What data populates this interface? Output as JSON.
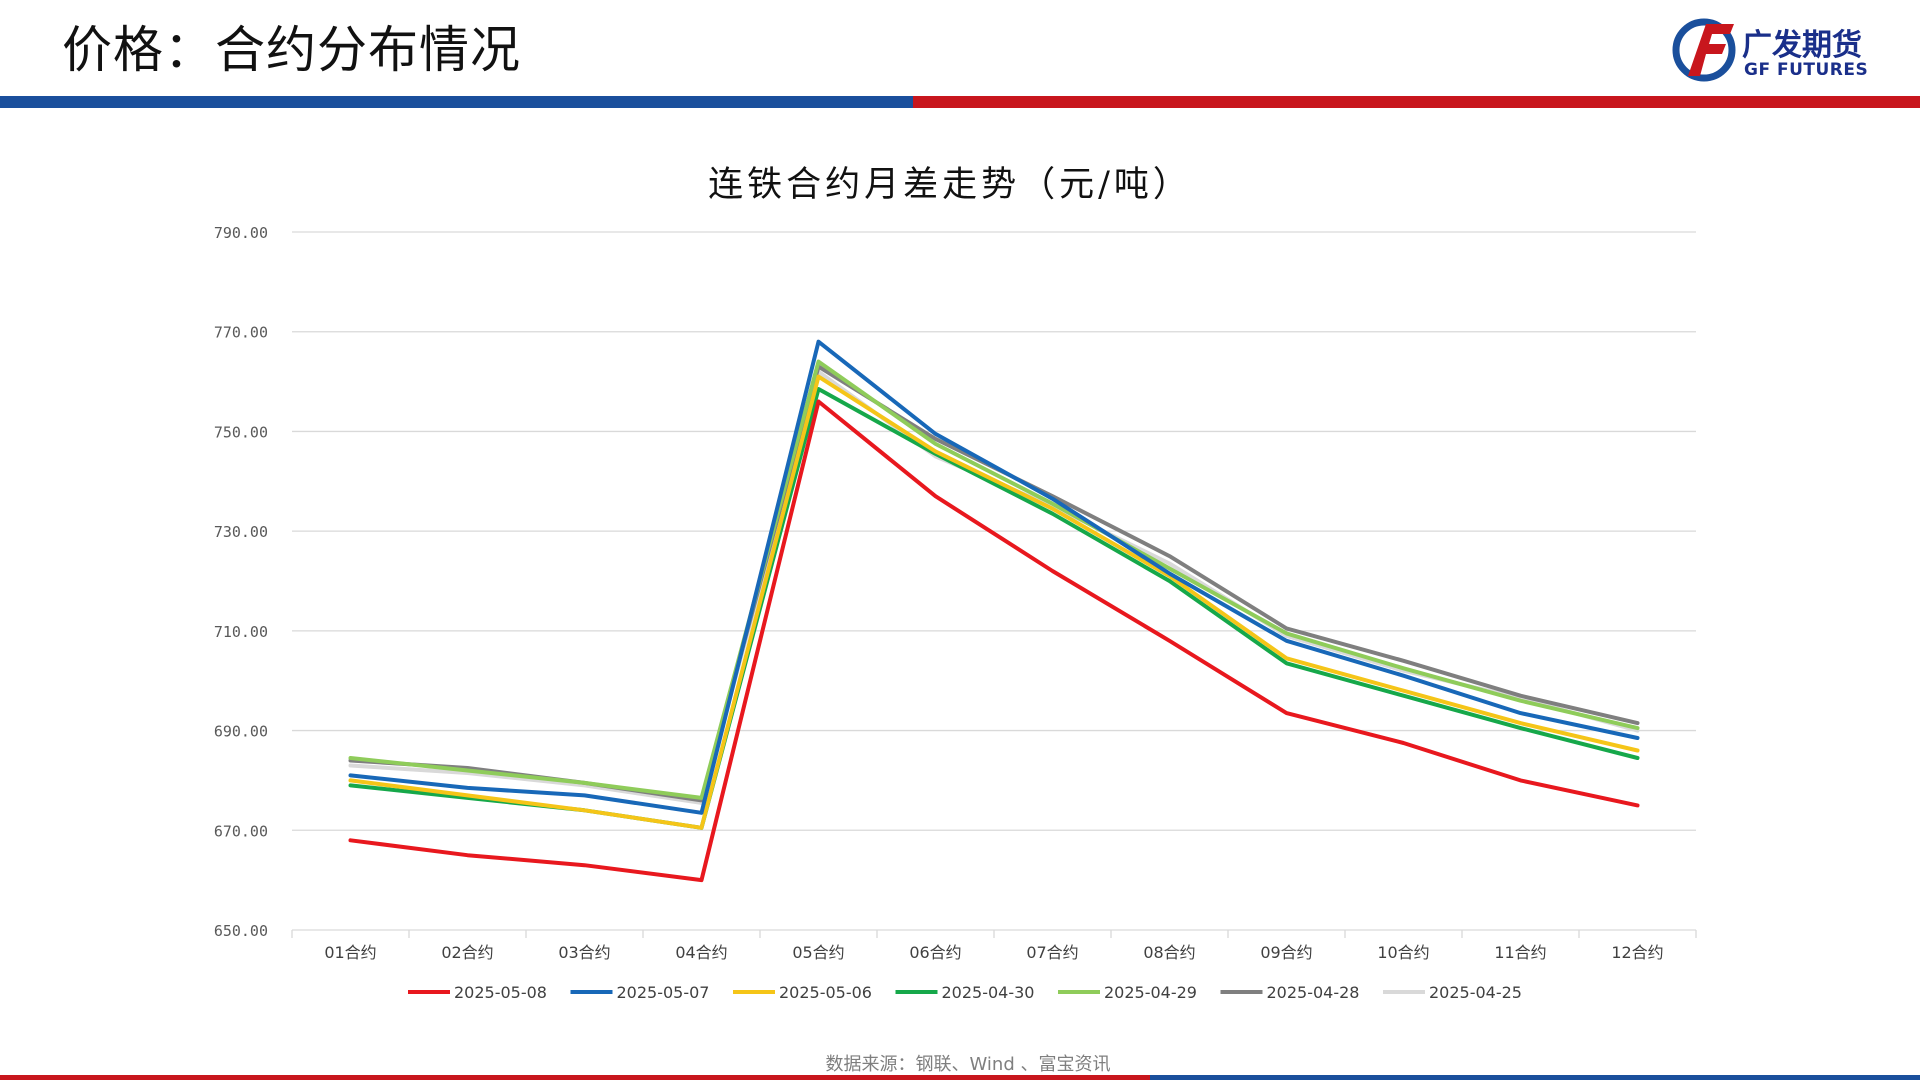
{
  "header": {
    "title": "价格：合约分布情况",
    "logo_cn": "广发期货",
    "logo_en": "GF FUTURES"
  },
  "colors": {
    "band_blue": "#1a4f9c",
    "band_red": "#c8161d",
    "gridline": "#d9d9d9"
  },
  "chart_data": {
    "type": "line",
    "title": "连铁合约月差走势（元/吨）",
    "categories": [
      "01合约",
      "02合约",
      "03合约",
      "04合约",
      "05合约",
      "06合约",
      "07合约",
      "08合约",
      "09合约",
      "10合约",
      "11合约",
      "12合约"
    ],
    "ylim": [
      650,
      790
    ],
    "yticks": [
      "650.00",
      "670.00",
      "690.00",
      "710.00",
      "730.00",
      "750.00",
      "770.00",
      "790.00"
    ],
    "grid": true,
    "legend_position": "bottom",
    "series": [
      {
        "name": "2025-05-08",
        "color": "#e8181e",
        "values": [
          668,
          665,
          663,
          660,
          756,
          737,
          722,
          708,
          693.5,
          687.5,
          680,
          675
        ]
      },
      {
        "name": "2025-05-07",
        "color": "#1868b8",
        "values": [
          681,
          678.5,
          677,
          673.5,
          768,
          749.5,
          736.5,
          721.5,
          708,
          701,
          693.5,
          688.5
        ]
      },
      {
        "name": "2025-05-06",
        "color": "#f5c518",
        "values": [
          680,
          677,
          674,
          670.5,
          761,
          746,
          734.5,
          721,
          704.5,
          698,
          691.5,
          686
        ]
      },
      {
        "name": "2025-04-30",
        "color": "#16a84a",
        "values": [
          679,
          676.5,
          674,
          670.5,
          758.5,
          745.5,
          733.5,
          720,
          703.5,
          697,
          690.5,
          684.5
        ]
      },
      {
        "name": "2025-04-29",
        "color": "#8fcc5a",
        "values": [
          684.5,
          682,
          679.5,
          676.5,
          764,
          747.5,
          735.5,
          722.5,
          709.5,
          702.5,
          696,
          690.5
        ]
      },
      {
        "name": "2025-04-28",
        "color": "#7f7f7f",
        "values": [
          684,
          682.5,
          679.5,
          676,
          763,
          748.5,
          737,
          725,
          710.5,
          704,
          697,
          691.5
        ]
      },
      {
        "name": "2025-04-25",
        "color": "#d9d9d9",
        "values": [
          683,
          681.5,
          679,
          675.5,
          762,
          745,
          735,
          723.5,
          709,
          702,
          696.5,
          690
        ]
      }
    ]
  },
  "footer": {
    "source": "数据来源：钢联、Wind 、富宝资讯"
  }
}
